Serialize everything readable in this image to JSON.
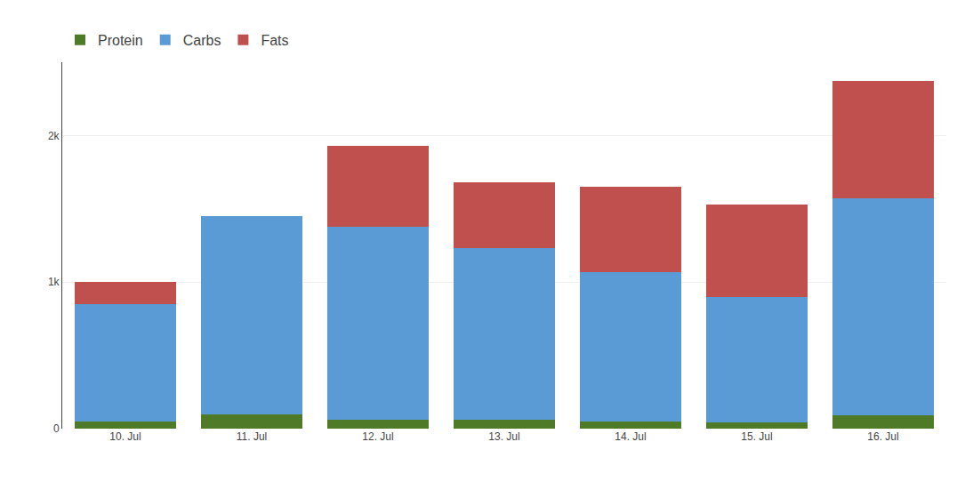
{
  "chart_data": {
    "type": "bar",
    "stacked": true,
    "categories": [
      "10. Jul",
      "11. Jul",
      "12. Jul",
      "13. Jul",
      "14. Jul",
      "15. Jul",
      "16. Jul"
    ],
    "series": [
      {
        "name": "Protein",
        "color": "#4F7A28",
        "values": [
          50,
          100,
          60,
          60,
          50,
          40,
          90
        ]
      },
      {
        "name": "Carbs",
        "color": "#5B9BD5",
        "values": [
          800,
          1350,
          1320,
          1170,
          1020,
          860,
          1480
        ]
      },
      {
        "name": "Fats",
        "color": "#C0504D",
        "values": [
          150,
          0,
          550,
          450,
          580,
          630,
          800
        ]
      }
    ],
    "ylim": [
      0,
      2500
    ],
    "yticks": [
      0,
      {
        "value": 1000,
        "label": "1k"
      },
      {
        "value": 2000,
        "label": "2k"
      }
    ],
    "grid": true,
    "legend": "top left"
  }
}
